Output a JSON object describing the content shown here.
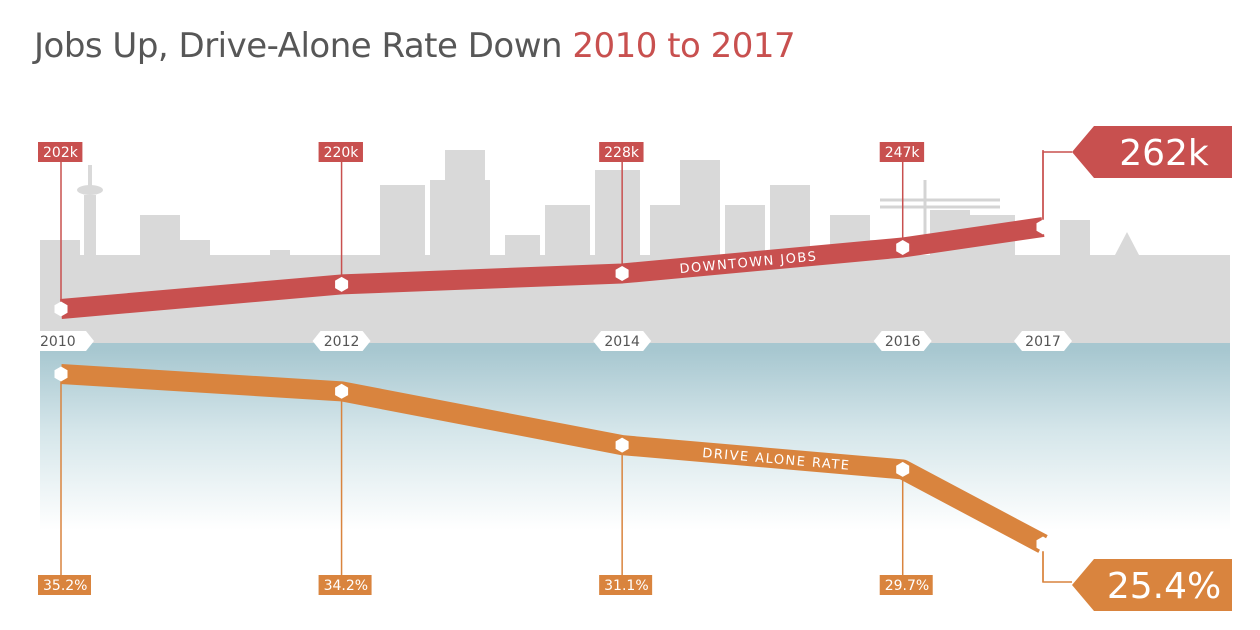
{
  "title": {
    "main": "Jobs Up, Drive-Alone Rate Down",
    "accent": "2010 to 2017"
  },
  "colors": {
    "jobs": "#c8504f",
    "drive": "#d9843e",
    "skyline": "#d9d9d9",
    "water": "#a7c7d0",
    "title_gray": "#575757",
    "title_accent": "#c8504f"
  },
  "chart_data": {
    "type": "line",
    "x": [
      "2010",
      "2012",
      "2014",
      "2016",
      "2017"
    ],
    "series": [
      {
        "name": "DOWNTOWN JOBS",
        "values": [
          202,
          220,
          228,
          247,
          262
        ],
        "labels": [
          "202k",
          "220k",
          "228k",
          "247k",
          "262k"
        ]
      },
      {
        "name": "DRIVE ALONE RATE",
        "values": [
          35.2,
          34.2,
          31.1,
          29.7,
          25.4
        ],
        "labels": [
          "35.2%",
          "34.2%",
          "31.1%",
          "29.7%",
          "25.4%"
        ]
      }
    ]
  }
}
